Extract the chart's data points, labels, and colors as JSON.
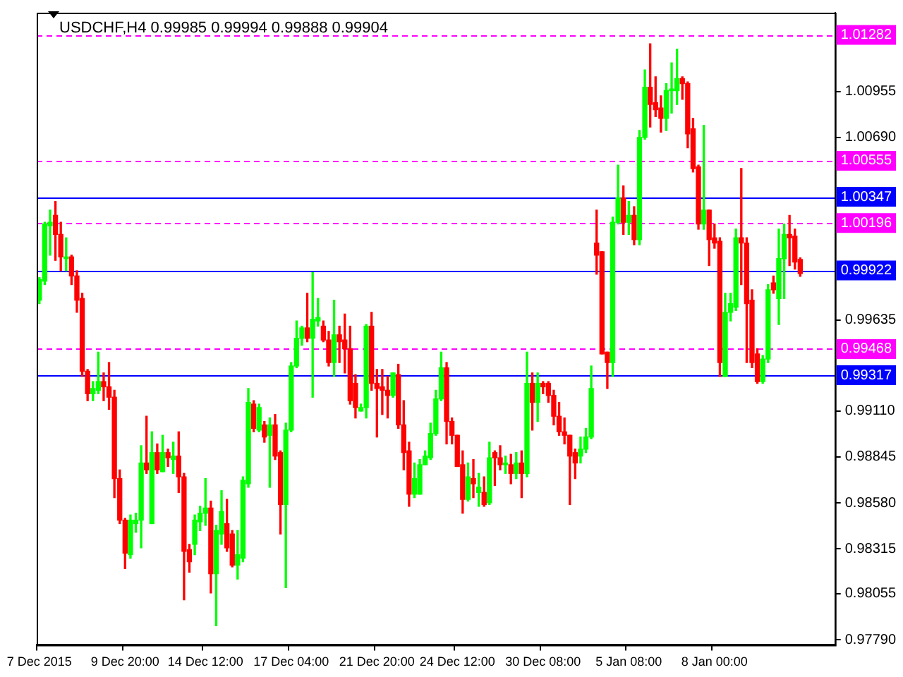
{
  "chart_data": {
    "type": "candlestick",
    "title": "USDCHF,H4 0.99985 0.99994 0.99888 0.99904",
    "categories": [
      "7 Dec 2015",
      null,
      null,
      null,
      null,
      null,
      null,
      null,
      null,
      null,
      null,
      null,
      null,
      null,
      null,
      null,
      "9 Dec 20:00",
      null,
      null,
      null,
      null,
      null,
      null,
      null,
      null,
      null,
      null,
      null,
      null,
      null,
      null,
      "14 Dec 12:00",
      null,
      null,
      null,
      null,
      null,
      null,
      null,
      null,
      null,
      null,
      null,
      null,
      null,
      null,
      null,
      "17 Dec 04:00",
      null,
      null,
      null,
      null,
      null,
      null,
      null,
      null,
      null,
      null,
      null,
      null,
      null,
      null,
      null,
      "21 Dec 20:00",
      null,
      null,
      null,
      null,
      null,
      null,
      null,
      null,
      null,
      null,
      null,
      null,
      null,
      null,
      "24 Dec 12:00",
      null,
      null,
      null,
      null,
      null,
      null,
      null,
      null,
      null,
      null,
      null,
      null,
      null,
      null,
      null,
      "30 Dec 08:00",
      null,
      null,
      null,
      null,
      null,
      null,
      null,
      null,
      null,
      null,
      null,
      null,
      null,
      null,
      null,
      "5 Jan 08:00",
      null,
      null,
      null,
      null,
      null,
      null,
      null,
      null,
      null,
      null,
      null,
      null,
      null,
      null,
      null,
      "8 Jan 00:00",
      null,
      null,
      null,
      null,
      null,
      null,
      null,
      null,
      null,
      null,
      null,
      null,
      null,
      null,
      null,
      null,
      null,
      null,
      null,
      null,
      null,
      null
    ],
    "ohlc": [
      [
        0.9975,
        0.9988,
        0.9973,
        0.9987
      ],
      [
        0.9986,
        1.002,
        0.9984,
        1.0019
      ],
      [
        1.0018,
        1.0027,
        1.0001,
        1.002
      ],
      [
        1.0024,
        1.0032,
        0.9998,
        1.0013
      ],
      [
        1.0013,
        1.002,
        0.9992,
        1.0
      ],
      [
        0.9999,
        1.0011,
        0.9992,
        1.0
      ],
      [
        1.0,
        1.0001,
        0.9984,
        0.9989
      ],
      [
        0.9989,
        0.9992,
        0.9968,
        0.9975
      ],
      [
        0.9976,
        0.9979,
        0.9931,
        0.9934
      ],
      [
        0.9934,
        0.9935,
        0.9917,
        0.9921
      ],
      [
        0.9921,
        0.9928,
        0.9917,
        0.9924
      ],
      [
        0.9923,
        0.9945,
        0.9921,
        0.9928
      ],
      [
        0.9928,
        0.9933,
        0.9917,
        0.9925
      ],
      [
        0.9925,
        0.9939,
        0.9912,
        0.9919
      ],
      [
        0.9919,
        0.9923,
        0.9861,
        0.9872
      ],
      [
        0.9872,
        0.9877,
        0.9846,
        0.9848
      ],
      [
        0.9848,
        0.9849,
        0.982,
        0.9829
      ],
      [
        0.9828,
        0.9851,
        0.9826,
        0.9848
      ],
      [
        0.9846,
        0.9852,
        0.9841,
        0.9848
      ],
      [
        0.9848,
        0.9891,
        0.9832,
        0.9881
      ],
      [
        0.9881,
        0.9908,
        0.9875,
        0.9877
      ],
      [
        0.9846,
        0.9899,
        0.9846,
        0.9887
      ],
      [
        0.9887,
        0.9892,
        0.9875,
        0.9877
      ],
      [
        0.9876,
        0.9897,
        0.9876,
        0.9887
      ],
      [
        0.9887,
        0.9889,
        0.9879,
        0.9884
      ],
      [
        0.9883,
        0.9893,
        0.9875,
        0.9885
      ],
      [
        0.9885,
        0.9899,
        0.9864,
        0.9873
      ],
      [
        0.9873,
        0.9875,
        0.9802,
        0.983
      ],
      [
        0.9831,
        0.9834,
        0.9818,
        0.9824
      ],
      [
        0.9834,
        0.9851,
        0.9828,
        0.9848
      ],
      [
        0.9847,
        0.9856,
        0.9842,
        0.9852
      ],
      [
        0.9852,
        0.9872,
        0.9845,
        0.9855
      ],
      [
        0.9855,
        0.9859,
        0.9806,
        0.9817
      ],
      [
        0.9817,
        0.9845,
        0.9787,
        0.9842
      ],
      [
        0.984,
        0.9865,
        0.9834,
        0.9853
      ],
      [
        0.9846,
        0.986,
        0.983,
        0.9832
      ],
      [
        0.984,
        0.9842,
        0.9821,
        0.9822
      ],
      [
        0.9822,
        0.9842,
        0.9814,
        0.9828
      ],
      [
        0.9826,
        0.9873,
        0.9824,
        0.9871
      ],
      [
        0.9869,
        0.9924,
        0.9867,
        0.9916
      ],
      [
        0.9915,
        0.9917,
        0.9899,
        0.9901
      ],
      [
        0.99,
        0.9915,
        0.9899,
        0.9913
      ],
      [
        0.9903,
        0.9905,
        0.9893,
        0.9896
      ],
      [
        0.9897,
        0.9907,
        0.9867,
        0.9903
      ],
      [
        0.9903,
        0.9909,
        0.9883,
        0.9885
      ],
      [
        0.9887,
        0.9888,
        0.984,
        0.9857
      ],
      [
        0.9857,
        0.9904,
        0.9809,
        0.99
      ],
      [
        0.99,
        0.9939,
        0.9899,
        0.9937
      ],
      [
        0.9937,
        0.9963,
        0.9936,
        0.9953
      ],
      [
        0.9953,
        0.996,
        0.9949,
        0.9959
      ],
      [
        0.9959,
        0.9979,
        0.9951,
        0.9953
      ],
      [
        0.9953,
        0.9991,
        0.9919,
        0.9964
      ],
      [
        0.9963,
        0.9976,
        0.996,
        0.9965
      ],
      [
        0.996,
        0.9963,
        0.9951,
        0.9952
      ],
      [
        0.9952,
        0.9957,
        0.9937,
        0.9939
      ],
      [
        0.9939,
        0.9975,
        0.9931,
        0.9955
      ],
      [
        0.9955,
        0.996,
        0.9939,
        0.9951
      ],
      [
        0.9952,
        0.9967,
        0.9933,
        0.9947
      ],
      [
        0.9947,
        0.996,
        0.9915,
        0.9917
      ],
      [
        0.9927,
        0.9932,
        0.9907,
        0.9913
      ],
      [
        0.9911,
        0.9915,
        0.9911,
        0.9913
      ],
      [
        0.9913,
        0.9961,
        0.9907,
        0.996
      ],
      [
        0.996,
        0.9968,
        0.9923,
        0.9927
      ],
      [
        0.9927,
        0.9935,
        0.9896,
        0.9924
      ],
      [
        0.9925,
        0.9935,
        0.9909,
        0.9923
      ],
      [
        0.9923,
        0.9931,
        0.9907,
        0.992
      ],
      [
        0.992,
        0.9933,
        0.9919,
        0.9933
      ],
      [
        0.9932,
        0.9938,
        0.9901,
        0.9903
      ],
      [
        0.9903,
        0.9917,
        0.9877,
        0.9887
      ],
      [
        0.9888,
        0.9893,
        0.9856,
        0.9863
      ],
      [
        0.9863,
        0.9881,
        0.9861,
        0.9872
      ],
      [
        0.9863,
        0.9883,
        0.9863,
        0.988
      ],
      [
        0.988,
        0.9888,
        0.988,
        0.9885
      ],
      [
        0.9884,
        0.9904,
        0.9883,
        0.9898
      ],
      [
        0.9898,
        0.9923,
        0.9897,
        0.9918
      ],
      [
        0.9918,
        0.9945,
        0.9917,
        0.9936
      ],
      [
        0.9936,
        0.9939,
        0.9892,
        0.9905
      ],
      [
        0.9905,
        0.9907,
        0.9892,
        0.9897
      ],
      [
        0.9897,
        0.9897,
        0.9879,
        0.9879
      ],
      [
        0.988,
        0.9888,
        0.9852,
        0.986
      ],
      [
        0.986,
        0.9881,
        0.9859,
        0.9873
      ],
      [
        0.9872,
        0.9883,
        0.9861,
        0.9869
      ],
      [
        0.9864,
        0.9875,
        0.9856,
        0.9867
      ],
      [
        0.9864,
        0.9873,
        0.9856,
        0.9857
      ],
      [
        0.9858,
        0.9893,
        0.9857,
        0.9884
      ],
      [
        0.9887,
        0.9888,
        0.9868,
        0.9884
      ],
      [
        0.9884,
        0.9891,
        0.9877,
        0.988
      ],
      [
        0.988,
        0.9885,
        0.9875,
        0.9881
      ],
      [
        0.988,
        0.9886,
        0.9869,
        0.9875
      ],
      [
        0.9875,
        0.9887,
        0.9872,
        0.9881
      ],
      [
        0.9881,
        0.9888,
        0.9861,
        0.9875
      ],
      [
        0.9875,
        0.9945,
        0.9873,
        0.9927
      ],
      [
        0.9927,
        0.9933,
        0.99,
        0.9916
      ],
      [
        0.9916,
        0.9933,
        0.9905,
        0.9927
      ],
      [
        0.9927,
        0.9928,
        0.9921,
        0.9925
      ],
      [
        0.9927,
        0.9928,
        0.9916,
        0.992
      ],
      [
        0.992,
        0.9923,
        0.9903,
        0.9908
      ],
      [
        0.9908,
        0.9916,
        0.9897,
        0.9899
      ],
      [
        0.9899,
        0.9907,
        0.9892,
        0.9897
      ],
      [
        0.9897,
        0.9897,
        0.9857,
        0.9885
      ],
      [
        0.9887,
        0.9889,
        0.9872,
        0.9881
      ],
      [
        0.9885,
        0.9896,
        0.9881,
        0.9889
      ],
      [
        0.9889,
        0.9901,
        0.9887,
        0.9896
      ],
      [
        0.9896,
        0.9937,
        0.9895,
        0.9924
      ],
      [
        1.0008,
        1.0027,
        0.999,
        1.0001
      ],
      [
        1.0003,
        1.0003,
        0.9944,
        0.9944
      ],
      [
        0.9945,
        0.9945,
        0.9924,
        0.9939
      ],
      [
        0.9939,
        1.0023,
        0.9931,
        1.002
      ],
      [
        1.002,
        1.0053,
        1.0019,
        1.0034
      ],
      [
        1.0034,
        1.0041,
        1.0013,
        1.002
      ],
      [
        1.002,
        1.0032,
        1.0013,
        1.0024
      ],
      [
        1.0024,
        1.0029,
        1.0007,
        1.001
      ],
      [
        1.001,
        1.0073,
        1.0007,
        1.0069
      ],
      [
        1.0069,
        1.0108,
        1.0068,
        1.0098
      ],
      [
        1.0098,
        1.0123,
        1.0075,
        1.0088
      ],
      [
        1.0089,
        1.0104,
        1.0081,
        1.0085
      ],
      [
        1.0086,
        1.0093,
        1.0072,
        1.008
      ],
      [
        1.008,
        1.01,
        1.0073,
        1.0096
      ],
      [
        1.0096,
        1.0112,
        1.0083,
        1.0097
      ],
      [
        1.0096,
        1.012,
        1.0088,
        1.0103
      ],
      [
        1.0103,
        1.0104,
        1.0091,
        1.01
      ],
      [
        1.01,
        1.0101,
        1.0063,
        1.0071
      ],
      [
        1.0074,
        1.008,
        1.0049,
        1.0051
      ],
      [
        1.0052,
        1.0053,
        1.0016,
        1.0019
      ],
      [
        1.0019,
        1.0076,
        1.0016,
        1.0027
      ],
      [
        1.0027,
        1.0027,
        0.9995,
        1.001
      ],
      [
        1.0011,
        1.0019,
        1.0005,
        1.0008
      ],
      [
        1.0009,
        1.0011,
        0.9931,
        0.9939
      ],
      [
        0.9931,
        0.9979,
        0.9931,
        0.9968
      ],
      [
        0.9968,
        0.9979,
        0.9963,
        0.9973
      ],
      [
        0.9971,
        1.0016,
        0.9969,
        1.0011
      ],
      [
        1.0011,
        1.0051,
        0.9984,
        1.0008
      ],
      [
        1.0008,
        1.0011,
        0.9939,
        0.9973
      ],
      [
        0.9975,
        0.9981,
        0.9936,
        0.9939
      ],
      [
        0.9944,
        0.9947,
        0.9927,
        0.9928
      ],
      [
        0.9928,
        0.9943,
        0.9927,
        0.9941
      ],
      [
        0.9941,
        0.9984,
        0.9939,
        0.9981
      ],
      [
        0.9985,
        0.9989,
        0.9979,
        0.9981
      ],
      [
        0.9976,
        1.0016,
        0.9961,
        0.9999
      ],
      [
        0.9999,
        1.0019,
        0.9976,
        1.0013
      ],
      [
        1.0013,
        1.0024,
        0.9995,
        1.0011
      ],
      [
        1.0012,
        1.0016,
        0.9993,
        0.9997
      ],
      [
        0.99985,
        0.99994,
        0.99888,
        0.99904
      ],
      null,
      null,
      null,
      null,
      null,
      null
    ],
    "colors": [
      "#00ff00",
      "#00ff00",
      "#00ff00",
      "#ff0000",
      "#ff0000",
      "#00ff00",
      "#ff0000",
      "#ff0000",
      "#ff0000",
      "#ff0000",
      "#00ff00",
      "#00ff00",
      "#ff0000",
      "#ff0000",
      "#ff0000",
      "#ff0000",
      "#ff0000",
      "#00ff00",
      "#00ff00",
      "#00ff00",
      "#ff0000",
      "#00ff00",
      "#ff0000",
      "#00ff00",
      "#ff0000",
      "#00ff00",
      "#ff0000",
      "#ff0000",
      "#ff0000",
      "#00ff00",
      "#00ff00",
      "#00ff00",
      "#ff0000",
      "#00ff00",
      "#00ff00",
      "#ff0000",
      "#ff0000",
      "#00ff00",
      "#00ff00",
      "#00ff00",
      "#ff0000",
      "#00ff00",
      "#ff0000",
      "#00ff00",
      "#ff0000",
      "#ff0000",
      "#00ff00",
      "#00ff00",
      "#00ff00",
      "#00ff00",
      "#ff0000",
      "#00ff00",
      "#00ff00",
      "#ff0000",
      "#ff0000",
      "#00ff00",
      "#ff0000",
      "#ff0000",
      "#ff0000",
      "#ff0000",
      "#00ff00",
      "#00ff00",
      "#ff0000",
      "#ff0000",
      "#ff0000",
      "#ff0000",
      "#00ff00",
      "#ff0000",
      "#ff0000",
      "#ff0000",
      "#00ff00",
      "#00ff00",
      "#00ff00",
      "#00ff00",
      "#00ff00",
      "#00ff00",
      "#ff0000",
      "#ff0000",
      "#ff0000",
      "#ff0000",
      "#00ff00",
      "#ff0000",
      "#00ff00",
      "#ff0000",
      "#00ff00",
      "#ff0000",
      "#ff0000",
      "#00ff00",
      "#ff0000",
      "#00ff00",
      "#ff0000",
      "#00ff00",
      "#ff0000",
      "#00ff00",
      "#ff0000",
      "#ff0000",
      "#ff0000",
      "#ff0000",
      "#ff0000",
      "#ff0000",
      "#ff0000",
      "#00ff00",
      "#00ff00",
      "#00ff00",
      "#ff0000",
      "#ff0000",
      "#ff0000",
      "#00ff00",
      "#00ff00",
      "#ff0000",
      "#00ff00",
      "#ff0000",
      "#00ff00",
      "#00ff00",
      "#ff0000",
      "#ff0000",
      "#ff0000",
      "#00ff00",
      "#00ff00",
      "#00ff00",
      "#ff0000",
      "#ff0000",
      "#ff0000",
      "#ff0000",
      "#00ff00",
      "#ff0000",
      "#ff0000",
      "#ff0000",
      "#00ff00",
      "#00ff00",
      "#00ff00",
      "#ff0000",
      "#ff0000",
      "#ff0000",
      "#ff0000",
      "#00ff00",
      "#00ff00",
      "#ff0000",
      "#00ff00",
      "#00ff00",
      "#ff0000",
      "#ff0000",
      "#ff0000",
      null,
      null,
      null,
      null,
      null,
      null
    ],
    "ylim": [
      0.9776,
      1.0141
    ],
    "yticks": [
      {
        "value": 1.00955,
        "label": "1.00955"
      },
      {
        "value": 1.0069,
        "label": "1.00690"
      },
      {
        "value": 0.99635,
        "label": "0.99635"
      },
      {
        "value": 0.9911,
        "label": "0.99110"
      },
      {
        "value": 0.98845,
        "label": "0.98845"
      },
      {
        "value": 0.9858,
        "label": "0.98580"
      },
      {
        "value": 0.98315,
        "label": "0.98315"
      },
      {
        "value": 0.98055,
        "label": "0.98055"
      },
      {
        "value": 0.9779,
        "label": "0.97790"
      }
    ],
    "ref_lines": [
      {
        "axis": "y",
        "value": 1.01282,
        "label": "1.01282",
        "color": "#ff00ff",
        "line_style": "dashed"
      },
      {
        "axis": "y",
        "value": 1.00555,
        "label": "1.00555",
        "color": "#ff00ff",
        "line_style": "dashed"
      },
      {
        "axis": "y",
        "value": 1.00347,
        "label": "1.00347",
        "color": "#0000ff",
        "line_style": "solid"
      },
      {
        "axis": "y",
        "value": 1.00196,
        "label": "1.00196",
        "color": "#ff00ff",
        "line_style": "dashed"
      },
      {
        "axis": "y",
        "value": 0.99922,
        "label": "0.99922",
        "color": "#0000ff",
        "line_style": "solid"
      },
      {
        "axis": "y",
        "value": 0.99468,
        "label": "0.99468",
        "color": "#ff00ff",
        "line_style": "dashed"
      },
      {
        "axis": "y",
        "value": 0.99317,
        "label": "0.99317",
        "color": "#0000ff",
        "line_style": "solid"
      }
    ]
  }
}
